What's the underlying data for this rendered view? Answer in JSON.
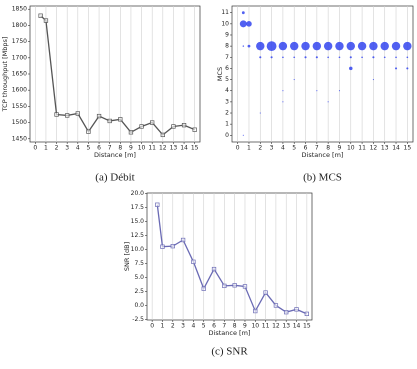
{
  "chart_data": [
    {
      "type": "line",
      "caption": "(a) Débit",
      "xlabel": "Distance [m]",
      "ylabel": "TCP throughput [Mbps]",
      "x": [
        0.5,
        1,
        2,
        3,
        4,
        5,
        6,
        7,
        8,
        9,
        10,
        11,
        12,
        13,
        14,
        15
      ],
      "series": [
        {
          "color": "#555555",
          "values": [
            1830,
            1815,
            1525,
            1522,
            1528,
            1472,
            1520,
            1505,
            1510,
            1470,
            1488,
            1500,
            1462,
            1488,
            1492,
            1478
          ]
        }
      ],
      "xlim": [
        -0.5,
        15.5
      ],
      "xticks": [
        0,
        1,
        2,
        3,
        4,
        5,
        6,
        7,
        8,
        9,
        10,
        11,
        12,
        13,
        14,
        15
      ],
      "ylim": [
        1440,
        1860
      ],
      "yticks": [
        1450,
        1500,
        1550,
        1600,
        1650,
        1700,
        1750,
        1800,
        1850
      ],
      "grid": "x"
    },
    {
      "type": "scatter",
      "caption": "(b) MCS",
      "xlabel": "Distance [m]",
      "ylabel": "MCS",
      "series": [
        {
          "color": "#3344ee",
          "x": [
            0.5,
            0.5,
            1,
            0.5,
            1,
            2,
            3,
            4,
            5,
            6,
            7,
            8,
            9,
            10,
            11,
            12,
            13,
            14,
            15,
            2,
            3,
            4,
            5,
            6,
            7,
            8,
            9,
            10,
            11,
            12,
            13,
            14,
            15,
            10,
            14,
            15,
            4,
            4,
            5,
            7,
            8,
            9,
            12,
            2,
            0.5
          ],
          "values": [
            11,
            10,
            10,
            8,
            8,
            8,
            8,
            8,
            8,
            8,
            8,
            8,
            8,
            8,
            8,
            8,
            8,
            8,
            8,
            7,
            7,
            7,
            7,
            7,
            7,
            7,
            7,
            7,
            7,
            7,
            7,
            7,
            7,
            6,
            6,
            6,
            3,
            4,
            5,
            4,
            3,
            4,
            5,
            2,
            0
          ],
          "sizes": [
            2,
            5,
            4,
            1,
            2,
            6,
            7,
            6,
            6,
            6,
            6,
            6,
            6,
            6,
            6,
            6,
            6,
            6,
            6,
            1.5,
            1.5,
            1.2,
            1.2,
            1.5,
            1.5,
            1.2,
            1.2,
            1.5,
            1.2,
            1.5,
            1.2,
            1.2,
            1.2,
            2.5,
            1.5,
            1.5,
            0.8,
            0.8,
            0.8,
            0.8,
            0.8,
            0.8,
            0.8,
            0.8,
            0.8
          ]
        }
      ],
      "xlim": [
        -0.5,
        15.5
      ],
      "xticks": [
        0,
        1,
        2,
        3,
        4,
        5,
        6,
        7,
        8,
        9,
        10,
        11,
        12,
        13,
        14,
        15
      ],
      "ylim": [
        -0.6,
        11.6
      ],
      "yticks": [
        0,
        1,
        2,
        3,
        4,
        5,
        6,
        7,
        8,
        9,
        10,
        11
      ],
      "grid": "x"
    },
    {
      "type": "line",
      "caption": "(c) SNR",
      "xlabel": "Distance [m]",
      "ylabel": "SNR [dB]",
      "x": [
        0.5,
        1,
        2,
        3,
        4,
        5,
        6,
        7,
        8,
        9,
        10,
        11,
        12,
        13,
        14,
        15
      ],
      "series": [
        {
          "color": "#6a6ab4",
          "values": [
            18,
            10.5,
            10.6,
            11.7,
            7.8,
            3,
            6.5,
            3.5,
            3.6,
            3.4,
            -1,
            2.3,
            0,
            -1.2,
            -0.7,
            -1.5
          ]
        }
      ],
      "xlim": [
        -0.5,
        15.5
      ],
      "xticks": [
        0,
        1,
        2,
        3,
        4,
        5,
        6,
        7,
        8,
        9,
        10,
        11,
        12,
        13,
        14,
        15
      ],
      "ylim": [
        -2.6,
        20.1
      ],
      "yticks": [
        {
          "value": -2.5,
          "label": "-2.5"
        },
        {
          "value": 0,
          "label": "0.0"
        },
        2.5,
        {
          "value": 5,
          "label": "5.0"
        },
        7.5,
        {
          "value": 10,
          "label": "10.0"
        },
        12.5,
        {
          "value": 15,
          "label": "15.0"
        },
        17.5,
        {
          "value": 20,
          "label": "20.0"
        }
      ],
      "grid": "x"
    }
  ]
}
